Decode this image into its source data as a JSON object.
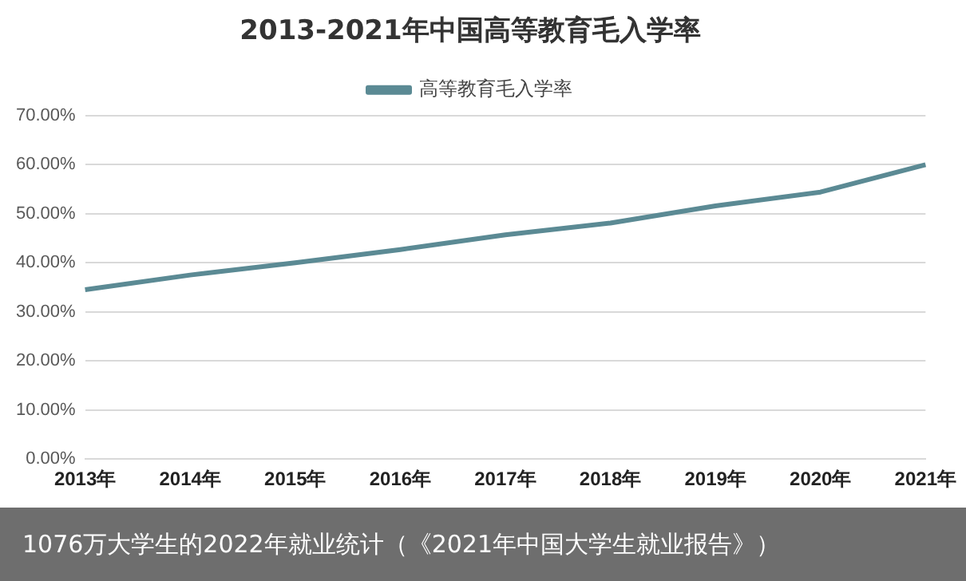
{
  "chart_data": {
    "type": "line",
    "title": "2013-2021年中国高等教育毛入学率",
    "categories": [
      "2013年",
      "2014年",
      "2015年",
      "2016年",
      "2017年",
      "2018年",
      "2019年",
      "2020年",
      "2021年"
    ],
    "series": [
      {
        "name": "高等教育毛入学率",
        "color": "#5b8a94",
        "values": [
          34.5,
          37.5,
          40.0,
          42.7,
          45.7,
          48.1,
          51.6,
          54.4,
          60.0
        ]
      }
    ],
    "ylim": [
      0,
      70
    ],
    "yticks": [
      {
        "value": 0,
        "label": "0.00%"
      },
      {
        "value": 10,
        "label": "10.00%"
      },
      {
        "value": 20,
        "label": "20.00%"
      },
      {
        "value": 30,
        "label": "30.00%"
      },
      {
        "value": 40,
        "label": "40.00%"
      },
      {
        "value": 50,
        "label": "50.00%"
      },
      {
        "value": 60,
        "label": "60.00%"
      },
      {
        "value": 70,
        "label": "70.00%"
      }
    ],
    "grid": "y",
    "legend": "top",
    "marker": "none",
    "line_style": "solid",
    "annotations": [
      "1076万大学生的2022年就业统计（《2021年中国大学生就业报告》）"
    ]
  }
}
